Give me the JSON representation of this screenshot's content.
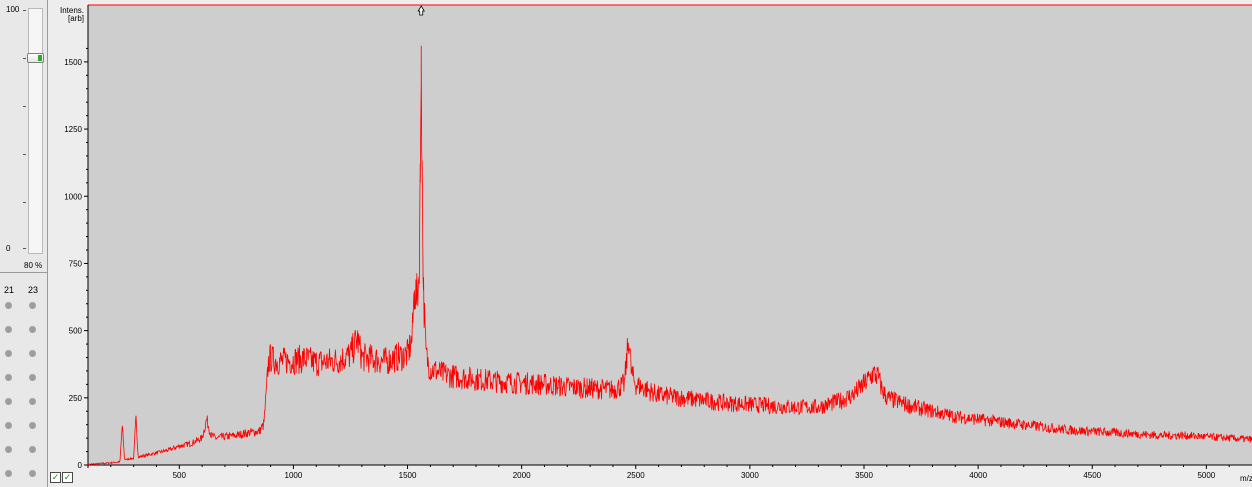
{
  "left_panel": {
    "slider_max": "100",
    "slider_min": "0",
    "slider_value": "80 %",
    "slider_level": 0.8,
    "well_columns": [
      "21",
      "23"
    ],
    "well_rows": 8
  },
  "colors": {
    "plot_bg": "#cecece",
    "trace": "#ff0000",
    "axis": "#000000"
  },
  "chart_data": {
    "type": "line",
    "ylabel": "Intens.\n[arb]",
    "xlabel": "m/z",
    "xlim": [
      100,
      5200
    ],
    "ylim": [
      0,
      1600
    ],
    "x_ticks": [
      500,
      1000,
      1500,
      2000,
      2500,
      3000,
      3500,
      4000,
      4500,
      5000
    ],
    "y_ticks": [
      0,
      250,
      500,
      750,
      1000,
      1250,
      1500
    ],
    "peak_marker_x": 1560,
    "series": [
      {
        "x": [
          100,
          200,
          240,
          250,
          260,
          300,
          310,
          320,
          350,
          400,
          450,
          500,
          550,
          600,
          620,
          640,
          660,
          700,
          750,
          800,
          850,
          870,
          880,
          890,
          900,
          910,
          950,
          1000,
          1050,
          1100,
          1150,
          1200,
          1250,
          1280,
          1300,
          1350,
          1400,
          1450,
          1500,
          1520,
          1530,
          1540,
          1550,
          1556,
          1560,
          1564,
          1570,
          1580,
          1590,
          1600,
          1650,
          1700,
          1800,
          1900,
          2000,
          2100,
          2200,
          2300,
          2400,
          2450,
          2470,
          2480,
          2490,
          2500,
          2550,
          2600,
          2700,
          2800,
          2900,
          3000,
          3100,
          3200,
          3300,
          3400,
          3450,
          3500,
          3520,
          3540,
          3560,
          3580,
          3600,
          3700,
          3800,
          3900,
          4000,
          4100,
          4200,
          4300,
          4400,
          4500,
          4600,
          4700,
          4800,
          4900,
          5000,
          5100,
          5200
        ],
        "y": [
          2,
          8,
          12,
          150,
          20,
          25,
          170,
          30,
          35,
          45,
          55,
          70,
          80,
          100,
          170,
          110,
          100,
          105,
          110,
          120,
          125,
          150,
          250,
          380,
          400,
          390,
          385,
          390,
          395,
          380,
          385,
          390,
          410,
          470,
          400,
          395,
          385,
          400,
          410,
          470,
          650,
          620,
          700,
          1050,
          1560,
          1100,
          650,
          420,
          380,
          360,
          340,
          330,
          320,
          310,
          305,
          300,
          290,
          285,
          280,
          300,
          480,
          350,
          320,
          300,
          280,
          260,
          250,
          240,
          230,
          225,
          220,
          215,
          215,
          240,
          260,
          300,
          320,
          340,
          330,
          280,
          250,
          220,
          200,
          180,
          170,
          160,
          150,
          140,
          130,
          125,
          120,
          115,
          110,
          110,
          105,
          100,
          95
        ]
      }
    ]
  }
}
